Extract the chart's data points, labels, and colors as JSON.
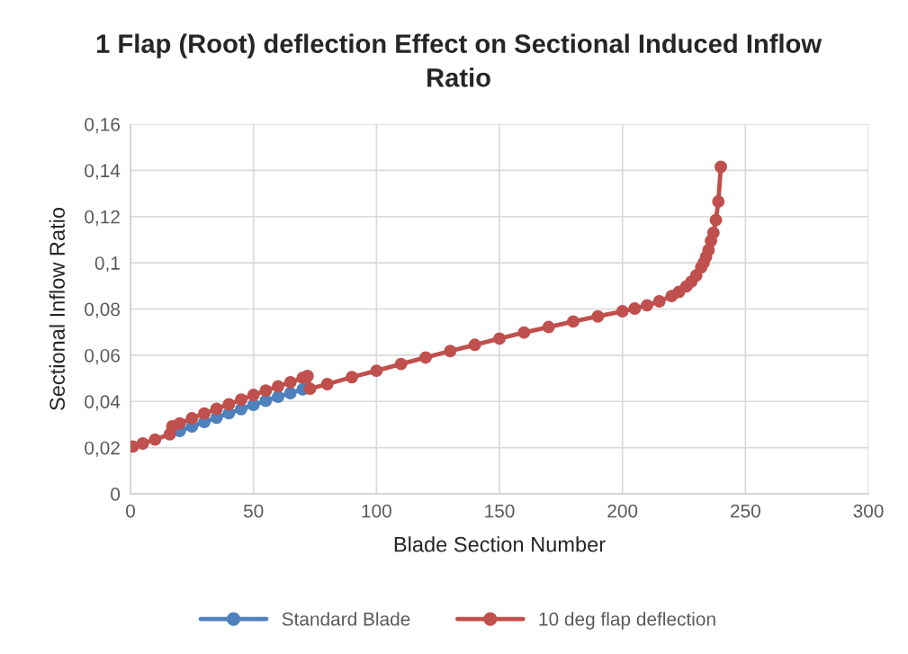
{
  "chart_data": {
    "type": "line",
    "title": "1 Flap (Root) deflection Effect on Sectional Induced Inflow\nRatio",
    "xlabel": "Blade Section Number",
    "ylabel": "Sectional Inflow Ratio",
    "xlim": [
      0,
      300
    ],
    "xticks": [
      0,
      50,
      100,
      150,
      200,
      250,
      300
    ],
    "ylim": [
      0,
      0.16
    ],
    "yticks": [
      0,
      {
        "value": 0.02,
        "label": "0,02"
      },
      {
        "value": 0.04,
        "label": "0,04"
      },
      {
        "value": 0.06,
        "label": "0,06"
      },
      {
        "value": 0.08,
        "label": "0,08"
      },
      {
        "value": 0.1,
        "label": "0,1"
      },
      {
        "value": 0.12,
        "label": "0,12"
      },
      {
        "value": 0.14,
        "label": "0,14"
      },
      {
        "value": 0.16,
        "label": "0,16"
      }
    ],
    "grid": true,
    "legend": "bottom",
    "marker": "circle",
    "line_style": "solid",
    "series": [
      {
        "name": "Standard Blade",
        "color": "#4f81bd",
        "x": [
          20,
          25,
          30,
          35,
          40,
          45,
          50,
          55,
          60,
          65,
          70,
          72
        ],
        "values": [
          0.0272,
          0.0292,
          0.0311,
          0.033,
          0.0349,
          0.0367,
          0.0385,
          0.0403,
          0.042,
          0.0436,
          0.0452,
          0.0458
        ]
      },
      {
        "name": "10 deg flap deflection",
        "color": "#c0504d",
        "x": [
          1,
          5,
          10,
          16,
          17,
          20,
          25,
          30,
          35,
          40,
          45,
          50,
          55,
          60,
          65,
          70,
          72,
          73,
          80,
          90,
          100,
          110,
          120,
          130,
          140,
          150,
          160,
          170,
          180,
          190,
          200,
          205,
          210,
          215,
          220,
          223,
          226,
          228,
          230,
          232,
          233,
          234,
          235,
          236,
          237,
          238,
          239,
          240
        ],
        "values": [
          0.0205,
          0.0218,
          0.0235,
          0.0258,
          0.0292,
          0.0305,
          0.0327,
          0.0348,
          0.0368,
          0.0388,
          0.0408,
          0.0428,
          0.0447,
          0.0465,
          0.0483,
          0.0502,
          0.051,
          0.0455,
          0.0475,
          0.0505,
          0.0533,
          0.0562,
          0.059,
          0.0618,
          0.0645,
          0.0672,
          0.0698,
          0.0722,
          0.0746,
          0.0768,
          0.079,
          0.0802,
          0.0816,
          0.0833,
          0.0856,
          0.0874,
          0.0898,
          0.0918,
          0.0945,
          0.098,
          0.1,
          0.1025,
          0.1055,
          0.1095,
          0.113,
          0.1185,
          0.1265,
          0.1415
        ]
      }
    ]
  }
}
